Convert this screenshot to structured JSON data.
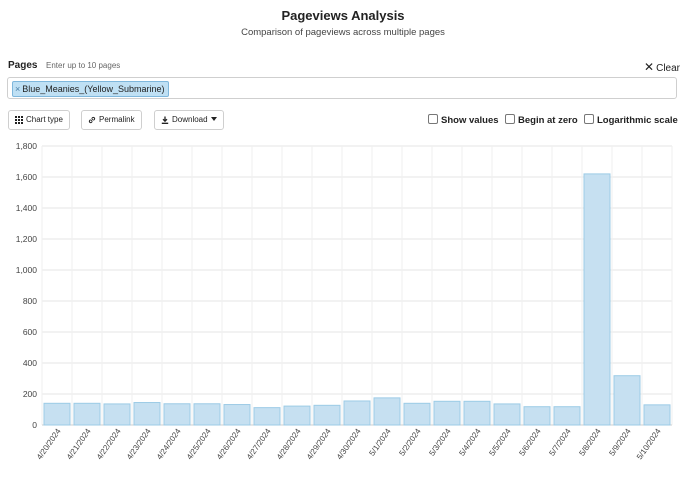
{
  "header": {
    "title": "Pageviews Analysis",
    "subtitle": "Comparison of pageviews across multiple pages"
  },
  "pages": {
    "label": "Pages",
    "hint": "Enter up to 10 pages",
    "clear_label": "Clear",
    "tokens": [
      "Blue_Meanies_(Yellow_Submarine)"
    ]
  },
  "toolbar": {
    "chart_type_label": "Chart type",
    "permalink_label": "Permalink",
    "download_label": "Download",
    "show_values_label": "Show values",
    "begin_at_zero_label": "Begin at zero",
    "log_scale_label": "Logarithmic scale"
  },
  "icons": {
    "chart_type": "grid-icon",
    "permalink": "link-icon",
    "download": "download-icon",
    "clear": "close-icon"
  },
  "colors": {
    "bar_fill": "#c6e0f1",
    "bar_stroke": "#9ccbe6",
    "token_fill": "#bfe0f4",
    "grid": "#e6e6e6"
  },
  "chart_data": {
    "type": "bar",
    "categories": [
      "4/20/2024",
      "4/21/2024",
      "4/22/2024",
      "4/23/2024",
      "4/24/2024",
      "4/25/2024",
      "4/26/2024",
      "4/27/2024",
      "4/28/2024",
      "4/29/2024",
      "4/30/2024",
      "5/1/2024",
      "5/2/2024",
      "5/3/2024",
      "5/4/2024",
      "5/5/2024",
      "5/6/2024",
      "5/7/2024",
      "5/8/2024",
      "5/9/2024",
      "5/10/2024"
    ],
    "series": [
      {
        "values": [
          140,
          140,
          136,
          145,
          137,
          137,
          132,
          112,
          122,
          127,
          155,
          175,
          140,
          153,
          153,
          136,
          118,
          118,
          1620,
          318,
          130
        ]
      }
    ],
    "yticks": [
      "0",
      "200",
      "400",
      "600",
      "800",
      "1,000",
      "1,200",
      "1,400",
      "1,600",
      "1,800"
    ],
    "ylim": [
      0,
      1800
    ],
    "grid": true,
    "legend": "none"
  }
}
